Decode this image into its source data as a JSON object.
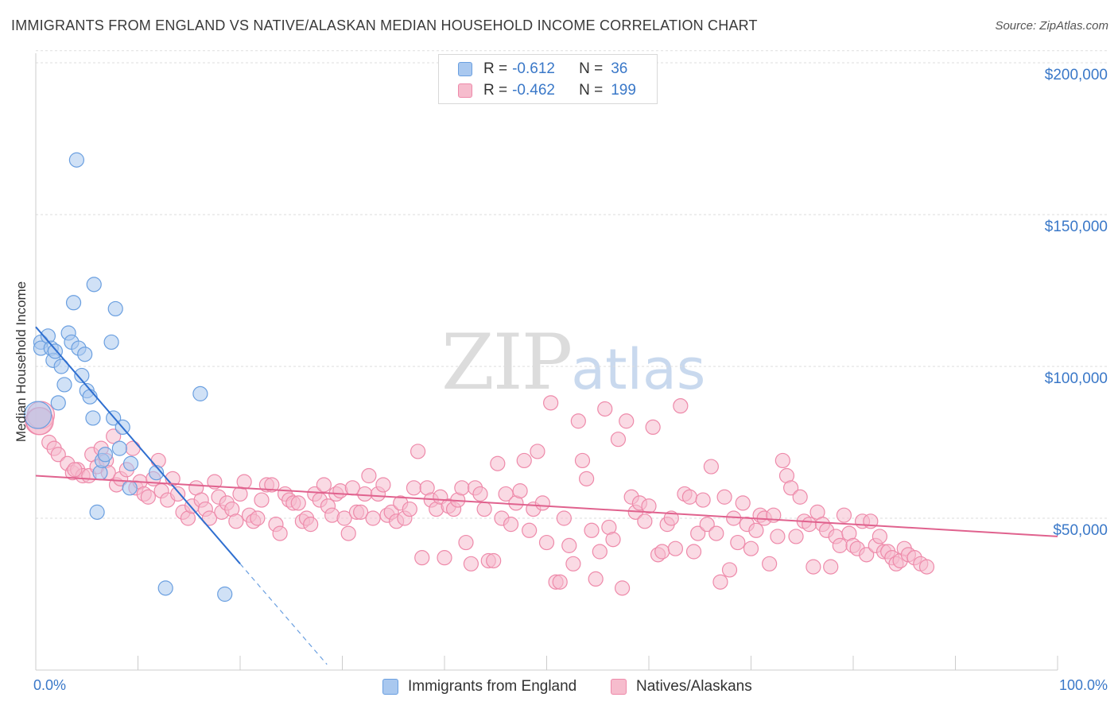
{
  "title": "IMMIGRANTS FROM ENGLAND VS NATIVE/ALASKAN MEDIAN HOUSEHOLD INCOME CORRELATION CHART",
  "source": "Source: ZipAtlas.com",
  "watermark": {
    "zip": "ZIP",
    "atlas": "atlas"
  },
  "legend": {
    "r_label": "R =",
    "n_label": "N =",
    "rows": [
      {
        "r": "-0.612",
        "n": "36",
        "fill": "#a9c8ef",
        "stroke": "#6a9fe0"
      },
      {
        "r": "-0.462",
        "n": "199",
        "fill": "#f6bccd",
        "stroke": "#ee8aaa"
      }
    ]
  },
  "chart_data": {
    "type": "scatter",
    "title": "IMMIGRANTS FROM ENGLAND VS NATIVE/ALASKAN MEDIAN HOUSEHOLD INCOME CORRELATION CHART",
    "xlabel": "",
    "ylabel": "Median Household Income",
    "xlim": [
      0,
      100
    ],
    "ylim": [
      0,
      210000
    ],
    "x_tick_labels": [
      "0.0%",
      "100.0%"
    ],
    "y_ticks": [
      {
        "value": 50000,
        "label": "$50,000"
      },
      {
        "value": 100000,
        "label": "$100,000"
      },
      {
        "value": 150000,
        "label": "$150,000"
      },
      {
        "value": 200000,
        "label": "$200,000"
      }
    ],
    "grid": "horizontal dashed",
    "legend_position": "bottom",
    "series": [
      {
        "name": "Immigrants from England",
        "color": "#6a9fe0",
        "fill": "#a9c8ef",
        "trend": {
          "x0": 0,
          "y0": 113000,
          "x1": 20,
          "y1": 35000,
          "dashed_to_x": 28.5
        },
        "points": [
          [
            0.5,
            108000
          ],
          [
            0.5,
            106000
          ],
          [
            1.2,
            110000
          ],
          [
            1.5,
            106000
          ],
          [
            1.7,
            102000
          ],
          [
            1.9,
            105000
          ],
          [
            2.2,
            88000
          ],
          [
            2.5,
            100000
          ],
          [
            2.8,
            94000
          ],
          [
            3.2,
            111000
          ],
          [
            3.5,
            108000
          ],
          [
            3.7,
            121000
          ],
          [
            4.0,
            168000
          ],
          [
            4.2,
            106000
          ],
          [
            4.5,
            97000
          ],
          [
            4.8,
            104000
          ],
          [
            5.0,
            92000
          ],
          [
            5.3,
            90000
          ],
          [
            5.6,
            83000
          ],
          [
            5.7,
            127000
          ],
          [
            6.3,
            65000
          ],
          [
            6.5,
            69000
          ],
          [
            6.8,
            71000
          ],
          [
            7.4,
            108000
          ],
          [
            7.6,
            83000
          ],
          [
            7.8,
            119000
          ],
          [
            8.2,
            73000
          ],
          [
            8.5,
            80000
          ],
          [
            9.2,
            60000
          ],
          [
            9.3,
            68000
          ],
          [
            11.8,
            65000
          ],
          [
            6.0,
            52000
          ],
          [
            12.7,
            27000
          ],
          [
            16.1,
            91000
          ],
          [
            18.5,
            25000
          ],
          [
            0.2,
            84000
          ]
        ]
      },
      {
        "name": "Natives/Alaskans",
        "color": "#ee8aaa",
        "fill": "#f6bccd",
        "trend": {
          "x0": 0,
          "y0": 64000,
          "x1": 100,
          "y1": 44000
        },
        "points": [
          [
            0.3,
            82000
          ],
          [
            0.5,
            84000
          ],
          [
            1.3,
            75000
          ],
          [
            1.8,
            73000
          ],
          [
            2.2,
            71000
          ],
          [
            3.1,
            68000
          ],
          [
            3.6,
            65000
          ],
          [
            4.1,
            66000
          ],
          [
            4.6,
            64000
          ],
          [
            5.2,
            64000
          ],
          [
            5.5,
            71000
          ],
          [
            6.0,
            67000
          ],
          [
            6.4,
            73000
          ],
          [
            6.9,
            69000
          ],
          [
            7.1,
            65000
          ],
          [
            7.6,
            77000
          ],
          [
            7.9,
            61000
          ],
          [
            8.3,
            63000
          ],
          [
            8.9,
            66000
          ],
          [
            9.5,
            73000
          ],
          [
            9.8,
            60000
          ],
          [
            10.2,
            62000
          ],
          [
            10.6,
            58000
          ],
          [
            11.0,
            57000
          ],
          [
            11.5,
            63000
          ],
          [
            12.0,
            69000
          ],
          [
            12.3,
            59000
          ],
          [
            12.9,
            56000
          ],
          [
            13.4,
            63000
          ],
          [
            13.9,
            58000
          ],
          [
            14.4,
            52000
          ],
          [
            14.9,
            50000
          ],
          [
            15.3,
            54000
          ],
          [
            15.7,
            60000
          ],
          [
            16.2,
            56000
          ],
          [
            16.6,
            53000
          ],
          [
            17.0,
            50000
          ],
          [
            17.5,
            62000
          ],
          [
            17.9,
            57000
          ],
          [
            18.2,
            52000
          ],
          [
            18.7,
            55000
          ],
          [
            19.2,
            53000
          ],
          [
            19.6,
            49000
          ],
          [
            20.0,
            58000
          ],
          [
            20.4,
            62000
          ],
          [
            20.9,
            51000
          ],
          [
            21.3,
            49000
          ],
          [
            21.7,
            50000
          ],
          [
            22.1,
            56000
          ],
          [
            22.6,
            61000
          ],
          [
            23.1,
            61000
          ],
          [
            23.5,
            48000
          ],
          [
            23.9,
            45000
          ],
          [
            24.4,
            58000
          ],
          [
            24.8,
            56000
          ],
          [
            25.2,
            55000
          ],
          [
            25.7,
            55000
          ],
          [
            26.1,
            49000
          ],
          [
            26.5,
            50000
          ],
          [
            26.9,
            48000
          ],
          [
            27.3,
            58000
          ],
          [
            27.8,
            56000
          ],
          [
            28.2,
            61000
          ],
          [
            28.6,
            54000
          ],
          [
            29.0,
            51000
          ],
          [
            29.4,
            58000
          ],
          [
            29.8,
            59000
          ],
          [
            30.2,
            50000
          ],
          [
            30.6,
            45000
          ],
          [
            31.0,
            60000
          ],
          [
            31.4,
            52000
          ],
          [
            31.8,
            52000
          ],
          [
            32.2,
            58000
          ],
          [
            32.6,
            64000
          ],
          [
            33.0,
            50000
          ],
          [
            33.5,
            58000
          ],
          [
            34.0,
            61000
          ],
          [
            34.4,
            51000
          ],
          [
            34.8,
            52000
          ],
          [
            35.3,
            49000
          ],
          [
            35.7,
            55000
          ],
          [
            36.1,
            50000
          ],
          [
            36.6,
            53000
          ],
          [
            37.0,
            60000
          ],
          [
            37.4,
            72000
          ],
          [
            37.8,
            37000
          ],
          [
            38.3,
            60000
          ],
          [
            38.7,
            56000
          ],
          [
            39.2,
            53000
          ],
          [
            39.6,
            57000
          ],
          [
            40.0,
            37000
          ],
          [
            40.4,
            54000
          ],
          [
            40.9,
            53000
          ],
          [
            41.3,
            56000
          ],
          [
            41.7,
            60000
          ],
          [
            42.1,
            42000
          ],
          [
            42.6,
            35000
          ],
          [
            43.0,
            60000
          ],
          [
            43.5,
            58000
          ],
          [
            43.9,
            53000
          ],
          [
            44.3,
            36000
          ],
          [
            44.8,
            36000
          ],
          [
            45.2,
            68000
          ],
          [
            45.6,
            50000
          ],
          [
            46.0,
            58000
          ],
          [
            46.5,
            48000
          ],
          [
            47.0,
            55000
          ],
          [
            47.4,
            59000
          ],
          [
            47.8,
            69000
          ],
          [
            48.3,
            46000
          ],
          [
            48.7,
            53000
          ],
          [
            49.1,
            72000
          ],
          [
            49.6,
            55000
          ],
          [
            50.0,
            42000
          ],
          [
            50.4,
            88000
          ],
          [
            50.9,
            29000
          ],
          [
            51.3,
            29000
          ],
          [
            51.7,
            50000
          ],
          [
            52.2,
            41000
          ],
          [
            52.6,
            35000
          ],
          [
            53.1,
            82000
          ],
          [
            53.5,
            69000
          ],
          [
            53.9,
            63000
          ],
          [
            54.4,
            46000
          ],
          [
            54.8,
            30000
          ],
          [
            55.2,
            39000
          ],
          [
            55.7,
            86000
          ],
          [
            56.1,
            47000
          ],
          [
            56.5,
            43000
          ],
          [
            57.0,
            76000
          ],
          [
            57.4,
            27000
          ],
          [
            57.8,
            82000
          ],
          [
            58.3,
            57000
          ],
          [
            58.7,
            52000
          ],
          [
            59.1,
            55000
          ],
          [
            59.6,
            49000
          ],
          [
            60.0,
            54000
          ],
          [
            60.4,
            80000
          ],
          [
            60.9,
            38000
          ],
          [
            61.3,
            39000
          ],
          [
            61.8,
            48000
          ],
          [
            62.2,
            50000
          ],
          [
            62.6,
            40000
          ],
          [
            63.1,
            87000
          ],
          [
            63.5,
            58000
          ],
          [
            64.0,
            57000
          ],
          [
            64.4,
            39000
          ],
          [
            64.8,
            45000
          ],
          [
            65.3,
            56000
          ],
          [
            65.7,
            48000
          ],
          [
            66.1,
            67000
          ],
          [
            66.6,
            45000
          ],
          [
            67.0,
            29000
          ],
          [
            67.4,
            57000
          ],
          [
            67.9,
            33000
          ],
          [
            68.3,
            50000
          ],
          [
            68.7,
            42000
          ],
          [
            69.2,
            55000
          ],
          [
            69.6,
            48000
          ],
          [
            70.0,
            40000
          ],
          [
            70.5,
            46000
          ],
          [
            70.9,
            51000
          ],
          [
            71.3,
            50000
          ],
          [
            71.8,
            35000
          ],
          [
            72.2,
            51000
          ],
          [
            72.6,
            44000
          ],
          [
            73.1,
            69000
          ],
          [
            73.5,
            64000
          ],
          [
            73.9,
            60000
          ],
          [
            74.4,
            44000
          ],
          [
            74.8,
            57000
          ],
          [
            75.2,
            49000
          ],
          [
            75.7,
            48000
          ],
          [
            76.1,
            34000
          ],
          [
            76.5,
            52000
          ],
          [
            77.0,
            48000
          ],
          [
            77.4,
            46000
          ],
          [
            77.8,
            34000
          ],
          [
            78.3,
            44000
          ],
          [
            78.7,
            41000
          ],
          [
            79.1,
            51000
          ],
          [
            79.6,
            45000
          ],
          [
            80.0,
            41000
          ],
          [
            80.4,
            40000
          ],
          [
            80.9,
            49000
          ],
          [
            81.3,
            38000
          ],
          [
            81.7,
            49000
          ],
          [
            82.2,
            41000
          ],
          [
            82.6,
            44000
          ],
          [
            83.0,
            39000
          ],
          [
            83.4,
            39000
          ],
          [
            83.8,
            37000
          ],
          [
            84.2,
            35000
          ],
          [
            84.6,
            36000
          ],
          [
            85.0,
            40000
          ],
          [
            85.4,
            38000
          ],
          [
            86.0,
            37000
          ],
          [
            86.6,
            35000
          ],
          [
            87.2,
            34000
          ],
          [
            0.4,
            82000
          ],
          [
            3.8,
            66000
          ]
        ]
      }
    ]
  }
}
